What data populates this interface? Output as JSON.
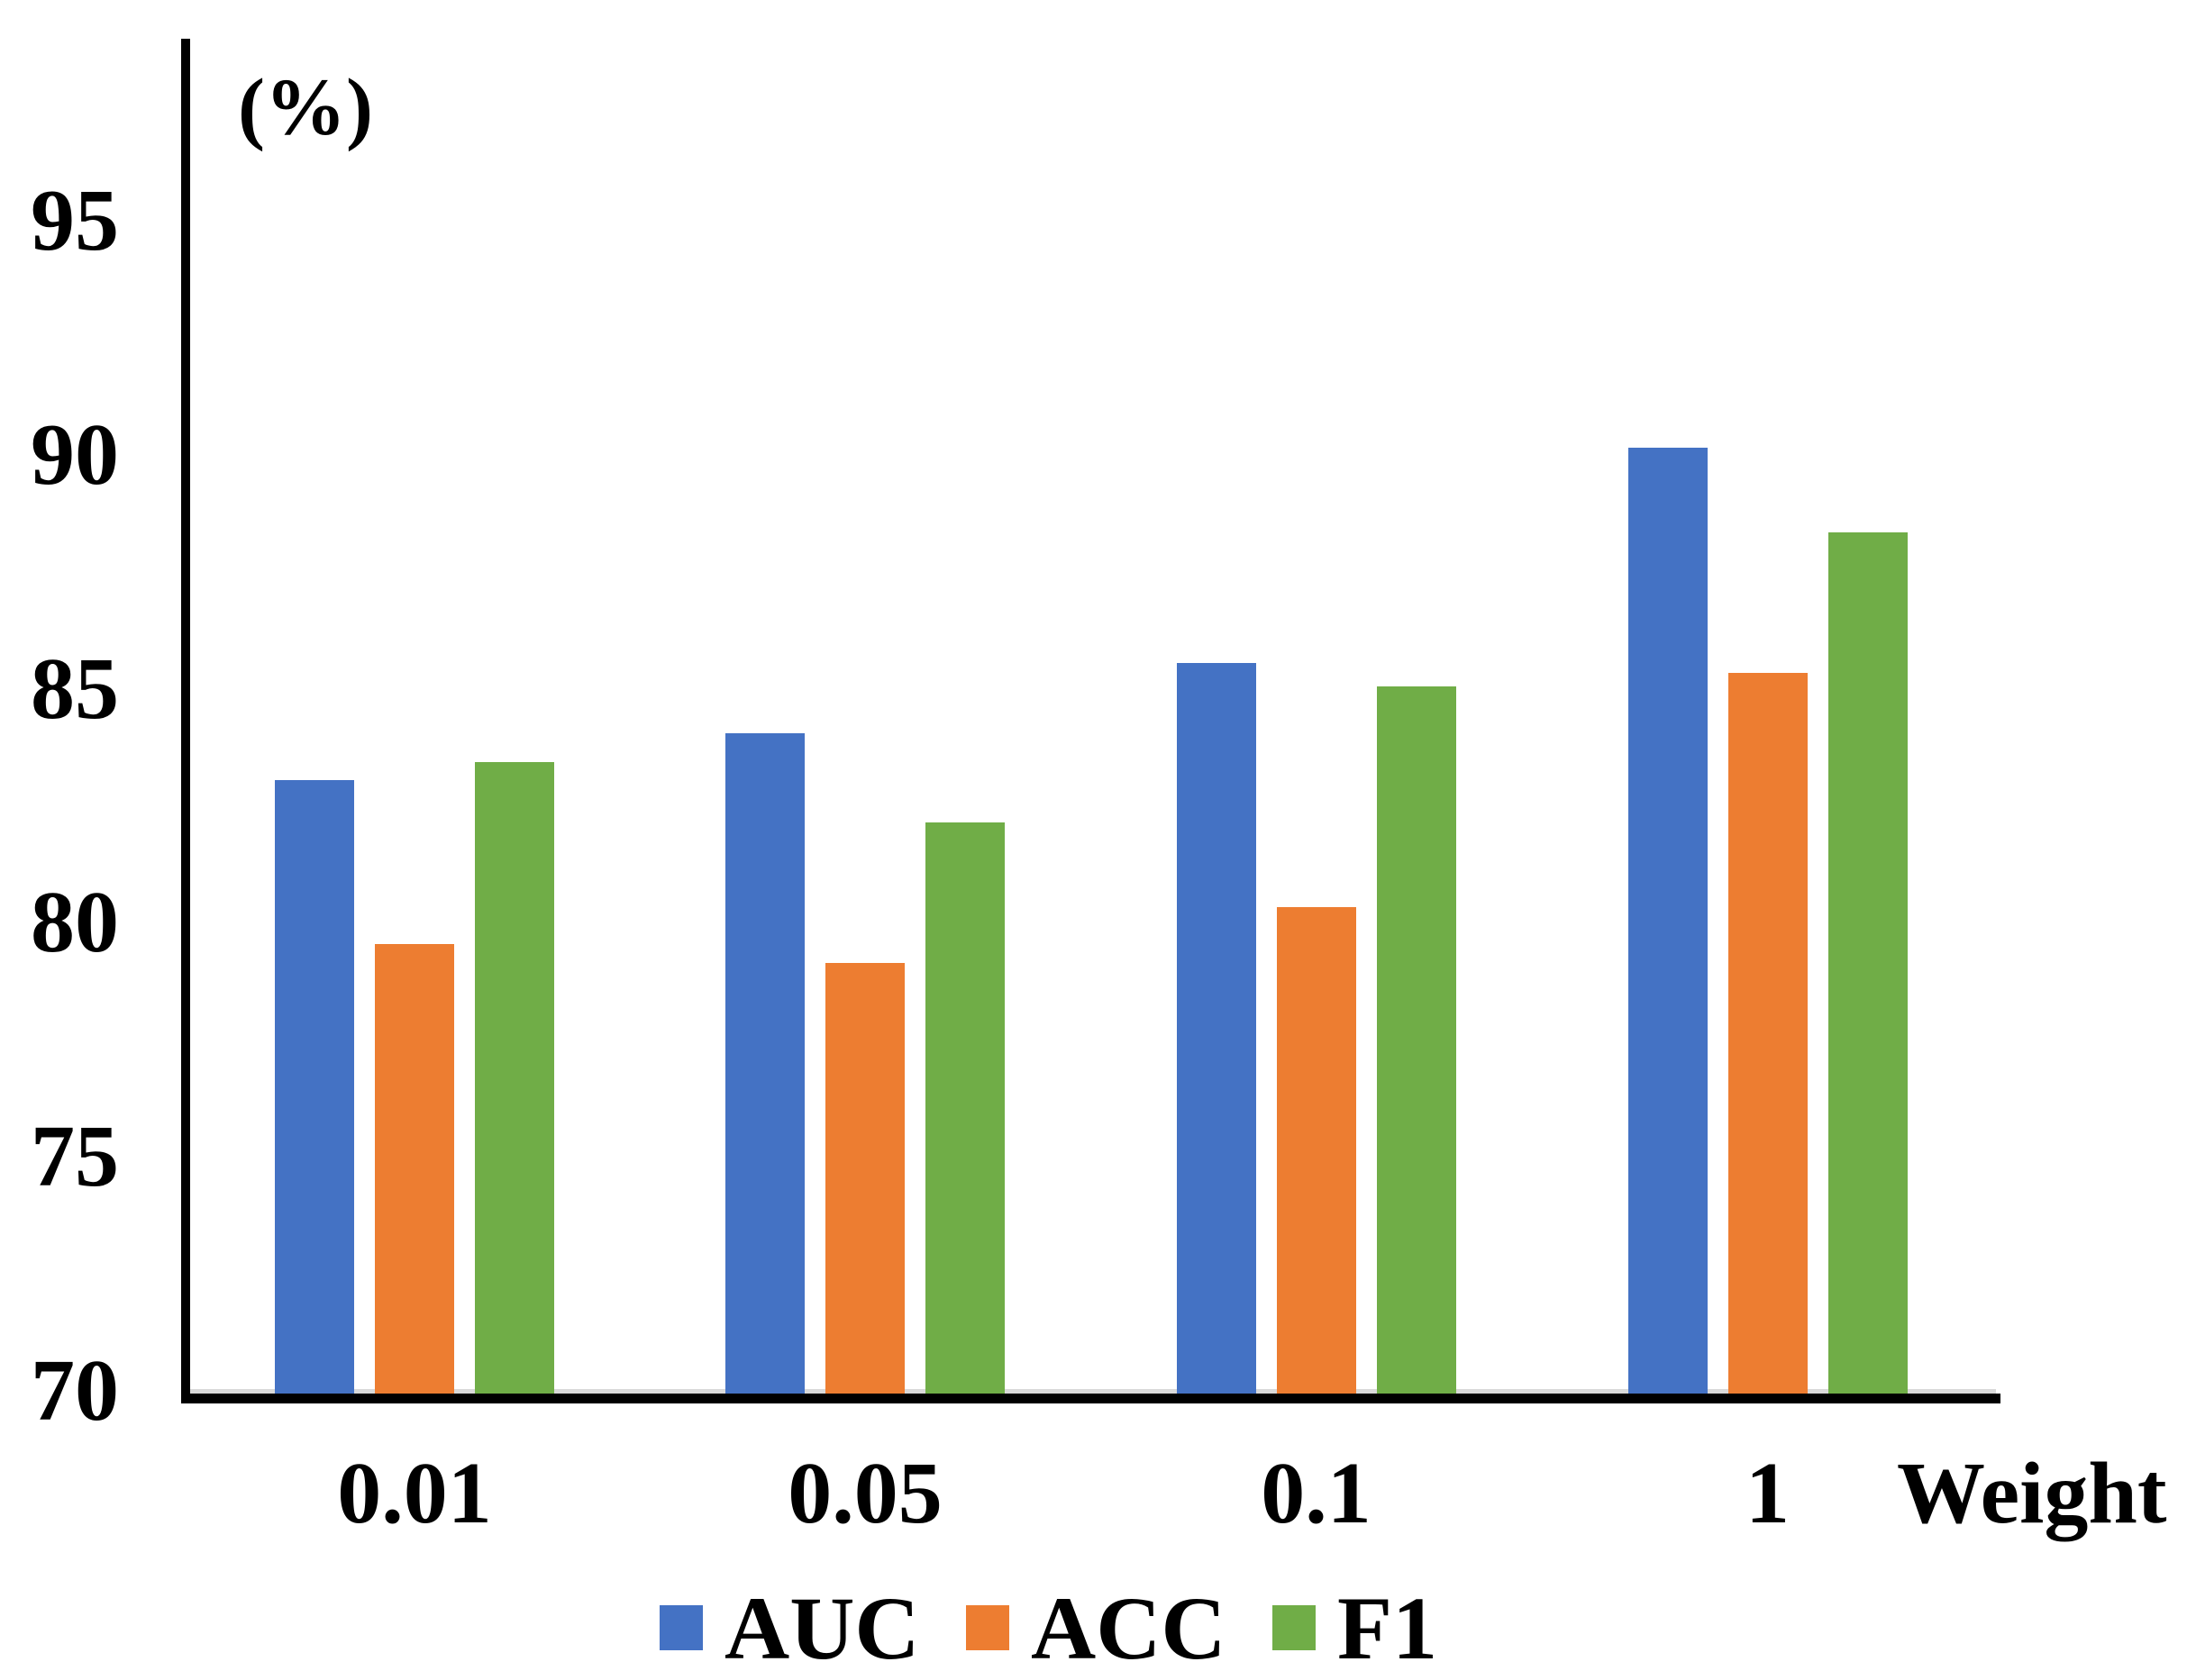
{
  "chart_data": {
    "type": "bar",
    "title": "",
    "ylabel": "(%)",
    "xlabel": "Weight",
    "categories": [
      "0.01",
      "0.05",
      "0.1",
      "1"
    ],
    "series": [
      {
        "name": "AUC",
        "color": "#4472C4",
        "values": [
          83.1,
          84.1,
          85.6,
          90.2
        ]
      },
      {
        "name": "ACC",
        "color": "#ED7D31",
        "values": [
          79.6,
          79.2,
          80.4,
          85.4
        ]
      },
      {
        "name": "F1",
        "color": "#70AD47",
        "values": [
          83.5,
          82.2,
          85.1,
          88.4
        ]
      }
    ],
    "ylim": [
      70,
      99
    ],
    "yticks": [
      95,
      90,
      85,
      80,
      75,
      70
    ],
    "grid": false,
    "legend_position": "bottom",
    "axis_color": "#000000",
    "baseline_accent_color": "#D9D9D9"
  }
}
